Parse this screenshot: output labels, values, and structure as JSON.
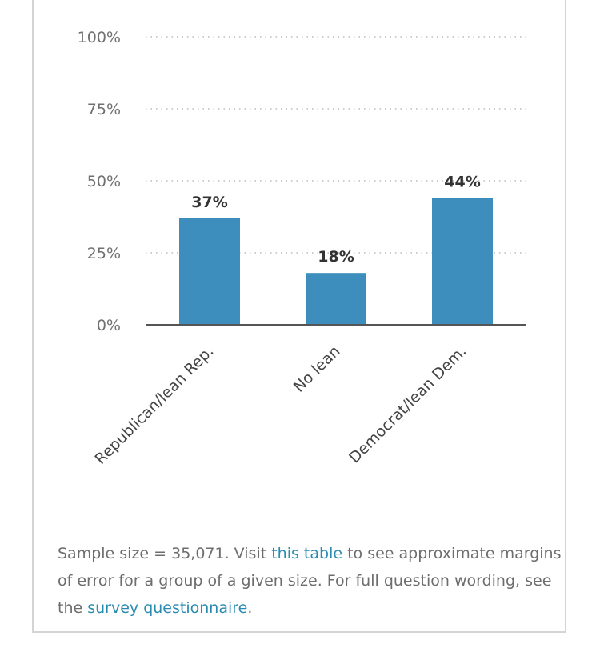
{
  "chart_data": {
    "type": "bar",
    "categories": [
      "Republican/lean Rep.",
      "No lean",
      "Democrat/lean Dem."
    ],
    "values": [
      37,
      18,
      44
    ],
    "value_labels": [
      "37%",
      "18%",
      "44%"
    ],
    "ylim": [
      0,
      100
    ],
    "yticks": [
      0,
      25,
      50,
      75,
      100
    ],
    "ytick_labels": [
      "0%",
      "25%",
      "50%",
      "75%",
      "100%"
    ],
    "bar_color": "#3d8dbd",
    "grid": "dotted horizontal",
    "title": "",
    "xlabel": "",
    "ylabel": ""
  },
  "note": {
    "part1": "Sample size = 35,071. Visit ",
    "link1": "this table",
    "part2": " to see approximate margins of error for a group of a given size. For full question wording, see the ",
    "link2": "survey questionnaire",
    "part3": "."
  },
  "colors": {
    "link": "#2a8bb0",
    "text": "#6d6d6d",
    "grid": "#bbbbbb",
    "axis": "#555555"
  }
}
